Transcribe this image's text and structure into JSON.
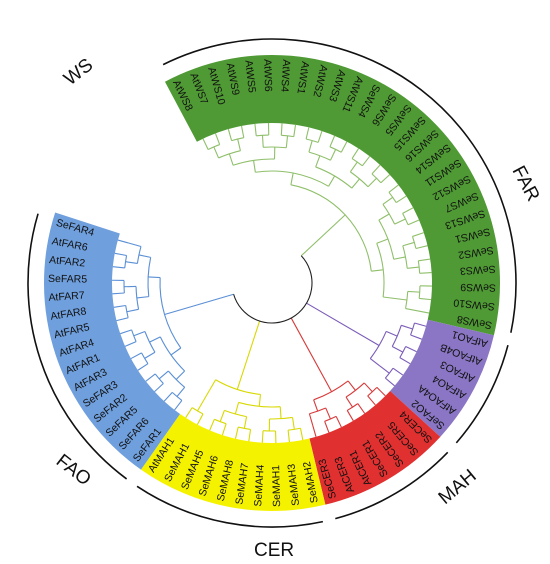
{
  "groups": [
    {
      "id": "WS",
      "title": "WS",
      "band_color": "#4f9a34",
      "branch_color": "#8fbf6a",
      "leaves": [
        "AtWS8",
        "AtWS7",
        "AtWS10",
        "AtWS9",
        "AtWS5",
        "AtWS6",
        "AtWS4",
        "AtWS1",
        "AtWS2",
        "AtWS3",
        "AtWS11",
        "SeWS4",
        "SeWS6",
        "SeWS5",
        "SeWS15",
        "SeWS16",
        "SeWS14",
        "SeWS11",
        "SeWS12",
        "SeWS7",
        "SeWS13",
        "SeWS1",
        "SeWS2",
        "SeWS3",
        "SeWS9",
        "SeWS10",
        "SeWS8"
      ]
    },
    {
      "id": "FAO",
      "title": "FAO",
      "band_color": "#8a76c4",
      "branch_color": "#7b5cb8",
      "leaves": [
        "AtFAO1",
        "AtFAO4B",
        "AtFAO3",
        "AtFAO4",
        "AtFAO4A",
        "SeFAO2"
      ]
    },
    {
      "id": "CER",
      "title": "CER",
      "band_color": "#e03030",
      "branch_color": "#d83a3a",
      "leaves": [
        "SeCER4",
        "SeCER5",
        "SeCER2",
        "SeCER1",
        "AtCER1",
        "AtCER3",
        "SeCER3"
      ]
    },
    {
      "id": "MAH",
      "title": "MAH",
      "band_color": "#f5f200",
      "branch_color": "#d8d800",
      "leaves": [
        "SeMAH2",
        "SeMAH3",
        "SeMAH1",
        "SeMAH4",
        "SeMAH7",
        "SeMAH8",
        "SeMAH6",
        "SeMAH5",
        "SeMAH1",
        "AtMAH1"
      ]
    },
    {
      "id": "FAR",
      "title": "FAR",
      "band_color": "#6f9fdc",
      "branch_color": "#5a8fd6",
      "leaves": [
        "SeFAR1",
        "SeFAR6",
        "SeFAR5",
        "SeFAR2",
        "SeFAR3",
        "AtFAR3",
        "AtFAR1",
        "AtFAR4",
        "AtFAR5",
        "AtFAR8",
        "AtFAR7",
        "SeFAR5",
        "AtFAR2",
        "AtFAR6",
        "SeFAR4"
      ]
    }
  ],
  "root_color": "#222222"
}
